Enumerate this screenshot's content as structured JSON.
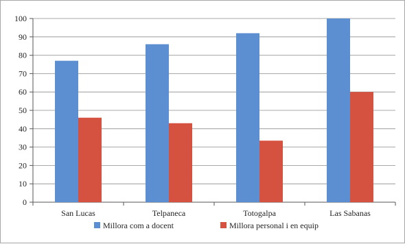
{
  "chart_data": {
    "type": "bar",
    "title": "",
    "xlabel": "",
    "ylabel": "",
    "categories": [
      "San Lucas",
      "Telpaneca",
      "Totogalpa",
      "Las Sabanas"
    ],
    "series": [
      {
        "name": "Millora com a docent",
        "color": "#5b8fd1",
        "values": [
          77,
          86,
          92,
          100
        ]
      },
      {
        "name": "Millora personal i en equip",
        "color": "#d65240",
        "values": [
          46,
          43,
          33.5,
          60
        ]
      }
    ],
    "ylim": [
      0,
      100
    ],
    "yticks": [
      "0",
      "10",
      "20",
      "30",
      "40",
      "50",
      "60",
      "70",
      "80",
      "90",
      "100"
    ],
    "grid": true,
    "legend": "bottom"
  }
}
